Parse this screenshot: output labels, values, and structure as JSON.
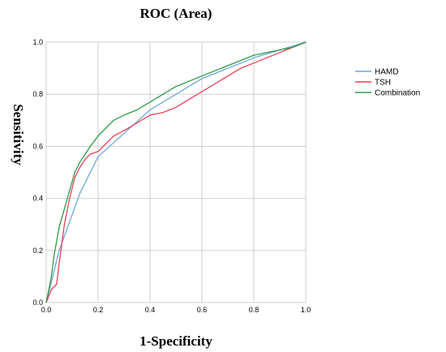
{
  "chart_data": {
    "type": "line",
    "title": "ROC (Area)",
    "xlabel": "1-Specificity",
    "ylabel": "Sensitivity",
    "xlim": [
      0,
      1
    ],
    "ylim": [
      0,
      1
    ],
    "x_ticks": [
      "0.0",
      "0.2",
      "0.4",
      "0.6",
      "0.8",
      "1.0"
    ],
    "y_ticks": [
      "0.0",
      "0.2",
      "0.4",
      "0.6",
      "0.8",
      "1.0"
    ],
    "grid": true,
    "legend_position": "right",
    "series": [
      {
        "name": "HAMD",
        "color": "#6fa8dc",
        "x": [
          0.0,
          0.05,
          0.13,
          0.2,
          0.3,
          0.4,
          0.5,
          0.6,
          0.7,
          0.8,
          0.9,
          1.0
        ],
        "y": [
          0.0,
          0.2,
          0.42,
          0.56,
          0.65,
          0.74,
          0.8,
          0.86,
          0.9,
          0.94,
          0.97,
          1.0
        ]
      },
      {
        "name": "TSH",
        "color": "#e8415a",
        "x": [
          0.0,
          0.02,
          0.04,
          0.05,
          0.07,
          0.09,
          0.11,
          0.13,
          0.15,
          0.17,
          0.2,
          0.23,
          0.26,
          0.3,
          0.35,
          0.4,
          0.45,
          0.5,
          0.55,
          0.6,
          0.65,
          0.7,
          0.75,
          0.8,
          0.85,
          0.9,
          0.95,
          1.0
        ],
        "y": [
          0.0,
          0.05,
          0.07,
          0.15,
          0.3,
          0.4,
          0.48,
          0.52,
          0.55,
          0.57,
          0.58,
          0.61,
          0.64,
          0.66,
          0.69,
          0.72,
          0.73,
          0.75,
          0.78,
          0.81,
          0.84,
          0.87,
          0.9,
          0.92,
          0.94,
          0.96,
          0.98,
          1.0
        ]
      },
      {
        "name": "Combination",
        "color": "#2e9b4a",
        "x": [
          0.0,
          0.02,
          0.03,
          0.05,
          0.07,
          0.09,
          0.11,
          0.13,
          0.15,
          0.17,
          0.2,
          0.23,
          0.26,
          0.3,
          0.35,
          0.4,
          0.45,
          0.5,
          0.55,
          0.6,
          0.65,
          0.7,
          0.75,
          0.8,
          0.85,
          0.9,
          0.95,
          1.0
        ],
        "y": [
          0.0,
          0.1,
          0.18,
          0.29,
          0.36,
          0.43,
          0.5,
          0.54,
          0.57,
          0.6,
          0.64,
          0.67,
          0.7,
          0.72,
          0.74,
          0.77,
          0.8,
          0.83,
          0.85,
          0.87,
          0.89,
          0.91,
          0.93,
          0.95,
          0.96,
          0.97,
          0.98,
          1.0
        ]
      }
    ]
  }
}
